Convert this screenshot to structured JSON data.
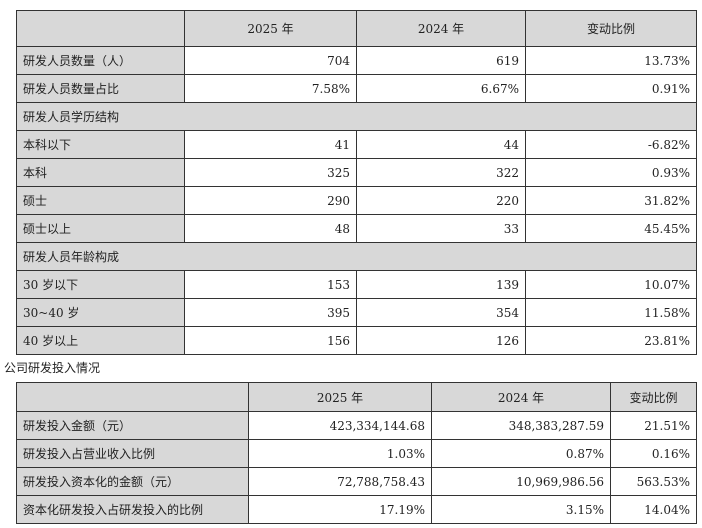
{
  "personnel": {
    "headers": [
      "",
      "2025 年",
      "2024 年",
      "变动比例"
    ],
    "rows": [
      {
        "label": "研发人员数量（人）",
        "v": [
          "704",
          "619",
          "13.73%"
        ]
      },
      {
        "label": "研发人员数量占比",
        "v": [
          "7.58%",
          "6.67%",
          "0.91%"
        ]
      },
      {
        "section": "研发人员学历结构"
      },
      {
        "label": "本科以下",
        "v": [
          "41",
          "44",
          "-6.82%"
        ]
      },
      {
        "label": "本科",
        "v": [
          "325",
          "322",
          "0.93%"
        ]
      },
      {
        "label": "硕士",
        "v": [
          "290",
          "220",
          "31.82%"
        ]
      },
      {
        "label": "硕士以上",
        "v": [
          "48",
          "33",
          "45.45%"
        ]
      },
      {
        "section": "研发人员年龄构成"
      },
      {
        "label": "30 岁以下",
        "v": [
          "153",
          "139",
          "10.07%"
        ]
      },
      {
        "label": "30~40 岁",
        "v": [
          "395",
          "354",
          "11.58%"
        ]
      },
      {
        "label": "40 岁以上",
        "v": [
          "156",
          "126",
          "23.81%"
        ]
      }
    ]
  },
  "investment": {
    "title": "公司研发投入情况",
    "headers": [
      "",
      "2025 年",
      "2024 年",
      "变动比例"
    ],
    "rows": [
      {
        "label": "研发投入金额（元）",
        "v": [
          "423,334,144.68",
          "348,383,287.59",
          "21.51%"
        ]
      },
      {
        "label": "研发投入占营业收入比例",
        "v": [
          "1.03%",
          "0.87%",
          "0.16%"
        ]
      },
      {
        "label": "研发投入资本化的金额（元）",
        "v": [
          "72,788,758.43",
          "10,969,986.56",
          "563.53%"
        ]
      },
      {
        "label": "资本化研发投入占研发投入的比例",
        "v": [
          "17.19%",
          "3.15%",
          "14.04%"
        ]
      }
    ]
  }
}
